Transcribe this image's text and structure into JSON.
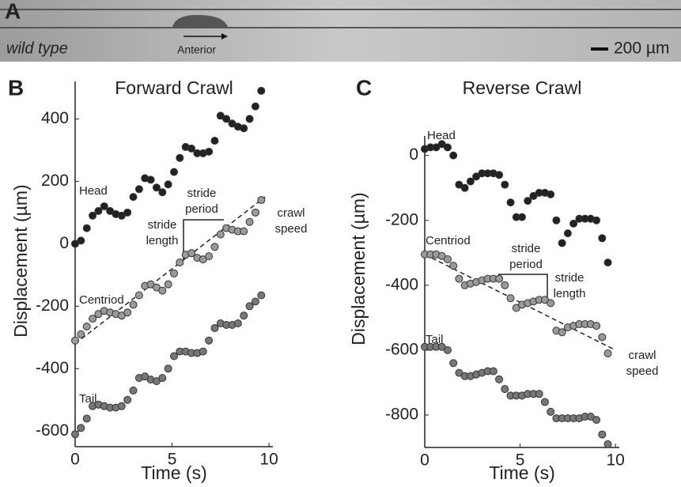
{
  "panel_a": {
    "label": "A",
    "genotype": "wild type",
    "direction": "Anterior",
    "scale_bar": "200 µm"
  },
  "chart_data": [
    {
      "type": "scatter",
      "panel": "B",
      "title": "Forward Crawl",
      "x_label": "Time (s)",
      "y_label": "Displacement (µm)",
      "x": [
        0,
        0.3,
        0.6,
        0.9,
        1.2,
        1.5,
        1.8,
        2.1,
        2.4,
        2.7,
        3,
        3.3,
        3.6,
        3.9,
        4.2,
        4.5,
        4.8,
        5.1,
        5.4,
        5.7,
        6,
        6.3,
        6.6,
        6.9,
        7.2,
        7.5,
        7.8,
        8.1,
        8.4,
        8.7,
        9,
        9.3,
        9.6
      ],
      "series": [
        {
          "name": "Head",
          "color": "#222222",
          "values": [
            0,
            10,
            50,
            90,
            105,
            120,
            105,
            95,
            90,
            100,
            150,
            175,
            210,
            205,
            180,
            165,
            190,
            230,
            275,
            310,
            305,
            290,
            290,
            295,
            330,
            410,
            400,
            385,
            375,
            370,
            400,
            440,
            490
          ]
        },
        {
          "name": "Centriod",
          "color": "#9a9a9a",
          "values": [
            -310,
            -290,
            -265,
            -240,
            -225,
            -215,
            -220,
            -225,
            -230,
            -220,
            -195,
            -165,
            -135,
            -130,
            -140,
            -150,
            -130,
            -95,
            -60,
            -35,
            -30,
            -45,
            -50,
            -40,
            -10,
            30,
            50,
            45,
            40,
            40,
            70,
            100,
            140
          ]
        },
        {
          "name": "Tail",
          "color": "#777777",
          "values": [
            -610,
            -590,
            -560,
            -520,
            -515,
            -520,
            -525,
            -525,
            -520,
            -500,
            -470,
            -430,
            -425,
            -435,
            -440,
            -430,
            -400,
            -360,
            -345,
            -345,
            -350,
            -350,
            -345,
            -310,
            -270,
            -255,
            -260,
            -260,
            -255,
            -230,
            -200,
            -185,
            -165
          ]
        }
      ],
      "trend": {
        "x": [
          0,
          9.8
        ],
        "values": [
          -320,
          150
        ]
      },
      "annotations": [
        [
          "stride",
          "length"
        ],
        [
          "stride",
          "period"
        ],
        [
          "crawl",
          "speed"
        ]
      ],
      "xlim": [
        0,
        10.2
      ],
      "ylim": [
        -650,
        520
      ],
      "xticks": [
        0,
        5,
        10
      ],
      "yticks": [
        -600,
        -400,
        -200,
        0,
        200,
        400
      ]
    },
    {
      "type": "scatter",
      "panel": "C",
      "title": "Reverse Crawl",
      "x_label": "Time (s)",
      "y_label": "Displacement (µm)",
      "x": [
        0,
        0.3,
        0.6,
        0.9,
        1.2,
        1.5,
        1.8,
        2.1,
        2.4,
        2.7,
        3,
        3.3,
        3.6,
        3.9,
        4.2,
        4.5,
        4.8,
        5.1,
        5.4,
        5.7,
        6,
        6.3,
        6.6,
        6.9,
        7.2,
        7.5,
        7.8,
        8.1,
        8.4,
        8.7,
        9,
        9.3,
        9.6
      ],
      "series": [
        {
          "name": "Head",
          "color": "#222222",
          "values": [
            20,
            25,
            25,
            35,
            25,
            0,
            -90,
            -100,
            -80,
            -65,
            -55,
            -55,
            -55,
            -60,
            -90,
            -145,
            -190,
            -190,
            -140,
            -125,
            -115,
            -115,
            -120,
            -200,
            -270,
            -240,
            -210,
            -195,
            -195,
            -195,
            -200,
            -255,
            -330
          ]
        },
        {
          "name": "Centriod",
          "color": "#9a9a9a",
          "values": [
            -305,
            -305,
            -305,
            -310,
            -320,
            -340,
            -380,
            -400,
            -395,
            -390,
            -385,
            -380,
            -380,
            -380,
            -400,
            -440,
            -470,
            -460,
            -455,
            -450,
            -445,
            -445,
            -455,
            -540,
            -545,
            -530,
            -525,
            -520,
            -520,
            -520,
            -525,
            -560,
            -610
          ]
        },
        {
          "name": "Tail",
          "color": "#777777",
          "values": [
            -590,
            -590,
            -590,
            -590,
            -600,
            -640,
            -670,
            -680,
            -680,
            -675,
            -670,
            -665,
            -665,
            -690,
            -720,
            -740,
            -740,
            -740,
            -735,
            -735,
            -735,
            -760,
            -790,
            -810,
            -810,
            -810,
            -810,
            -810,
            -805,
            -805,
            -815,
            -860,
            -890
          ]
        }
      ],
      "trend": {
        "x": [
          0,
          10
        ],
        "values": [
          -305,
          -600
        ]
      },
      "annotations": [
        [
          "stride",
          "period"
        ],
        [
          "stride",
          "length"
        ],
        [
          "crawl",
          "speed"
        ]
      ],
      "xlim": [
        0,
        10.2
      ],
      "ylim": [
        -900,
        60
      ],
      "xticks": [
        0,
        5,
        10
      ],
      "yticks": [
        -800,
        -600,
        -400,
        -200,
        0
      ]
    }
  ]
}
